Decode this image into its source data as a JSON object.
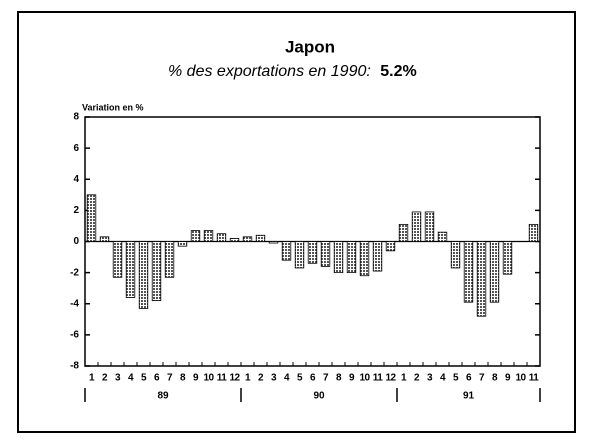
{
  "chart_data": {
    "type": "bar",
    "title": "Japon",
    "subtitle": "% des exportations en 1990:",
    "subtitle_value": "5.2%",
    "y_label": "Variation en %",
    "categories": [
      "1",
      "2",
      "3",
      "4",
      "5",
      "6",
      "7",
      "8",
      "9",
      "10",
      "11",
      "12",
      "1",
      "2",
      "3",
      "4",
      "5",
      "6",
      "7",
      "8",
      "9",
      "10",
      "11",
      "12",
      "1",
      "2",
      "3",
      "4",
      "5",
      "6",
      "7",
      "8",
      "9",
      "10",
      "11"
    ],
    "years": [
      "89",
      "90",
      "91"
    ],
    "values": [
      3.0,
      0.3,
      -2.3,
      -3.6,
      -4.3,
      -3.8,
      -2.3,
      -0.3,
      0.7,
      0.7,
      0.5,
      0.2,
      0.3,
      0.4,
      -0.1,
      -1.2,
      -1.7,
      -1.4,
      -1.6,
      -2.0,
      -2.0,
      -2.2,
      -1.9,
      -0.6,
      1.1,
      1.9,
      1.9,
      0.6,
      -1.7,
      -3.9,
      -4.8,
      -3.9,
      -2.1,
      0.0,
      1.1
    ],
    "color": "#555555",
    "ylim": [
      -8,
      8
    ],
    "yticks": [
      -8,
      -6,
      -4,
      -2,
      0,
      2,
      4,
      6,
      8
    ]
  }
}
